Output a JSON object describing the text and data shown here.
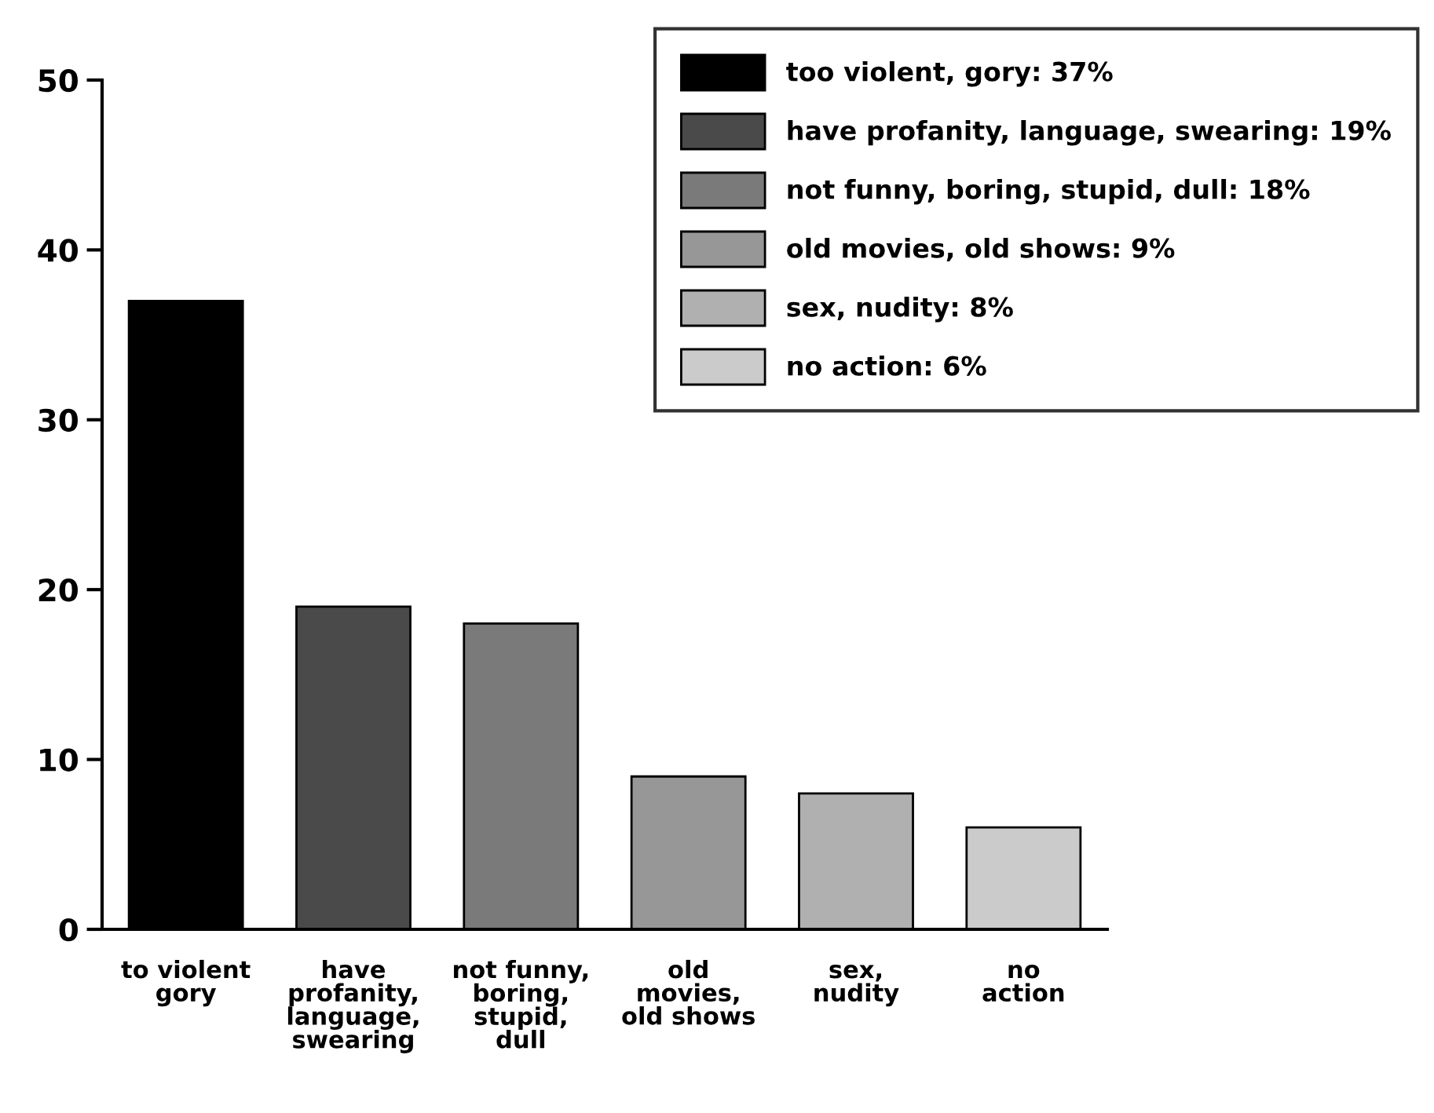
{
  "chart_data": {
    "type": "bar",
    "categories": [
      "to violent\ngory",
      "have\nprofanity,\nlanguage,\nswearing",
      "not funny,\nboring,\nstupid,\ndull",
      "old\nmovies,\nold shows",
      "sex,\nnudity",
      "no\naction"
    ],
    "series": [
      {
        "name": "too violent, gory: 37%",
        "color": "#000000",
        "values": [
          37,
          null,
          null,
          null,
          null,
          null
        ]
      },
      {
        "name": "have profanity, language, swearing: 19%",
        "color": "#4a4a4a",
        "values": [
          null,
          19,
          null,
          null,
          null,
          null
        ]
      },
      {
        "name": "not funny, boring, stupid, dull: 18%",
        "color": "#7a7a7a",
        "values": [
          null,
          null,
          18,
          null,
          null,
          null
        ]
      },
      {
        "name": "old movies, old shows: 9%",
        "color": "#979797",
        "values": [
          null,
          null,
          null,
          9,
          null,
          null
        ]
      },
      {
        "name": "sex, nudity: 8%",
        "color": "#b0b0b0",
        "values": [
          null,
          null,
          null,
          null,
          8,
          null
        ]
      },
      {
        "name": "no action: 6%",
        "color": "#cbcbcb",
        "values": [
          null,
          null,
          null,
          null,
          null,
          6
        ]
      }
    ],
    "ylim": [
      0,
      50
    ],
    "yticks": [
      0,
      10,
      20,
      30,
      40,
      50
    ],
    "grid": false,
    "legend": "top right"
  }
}
